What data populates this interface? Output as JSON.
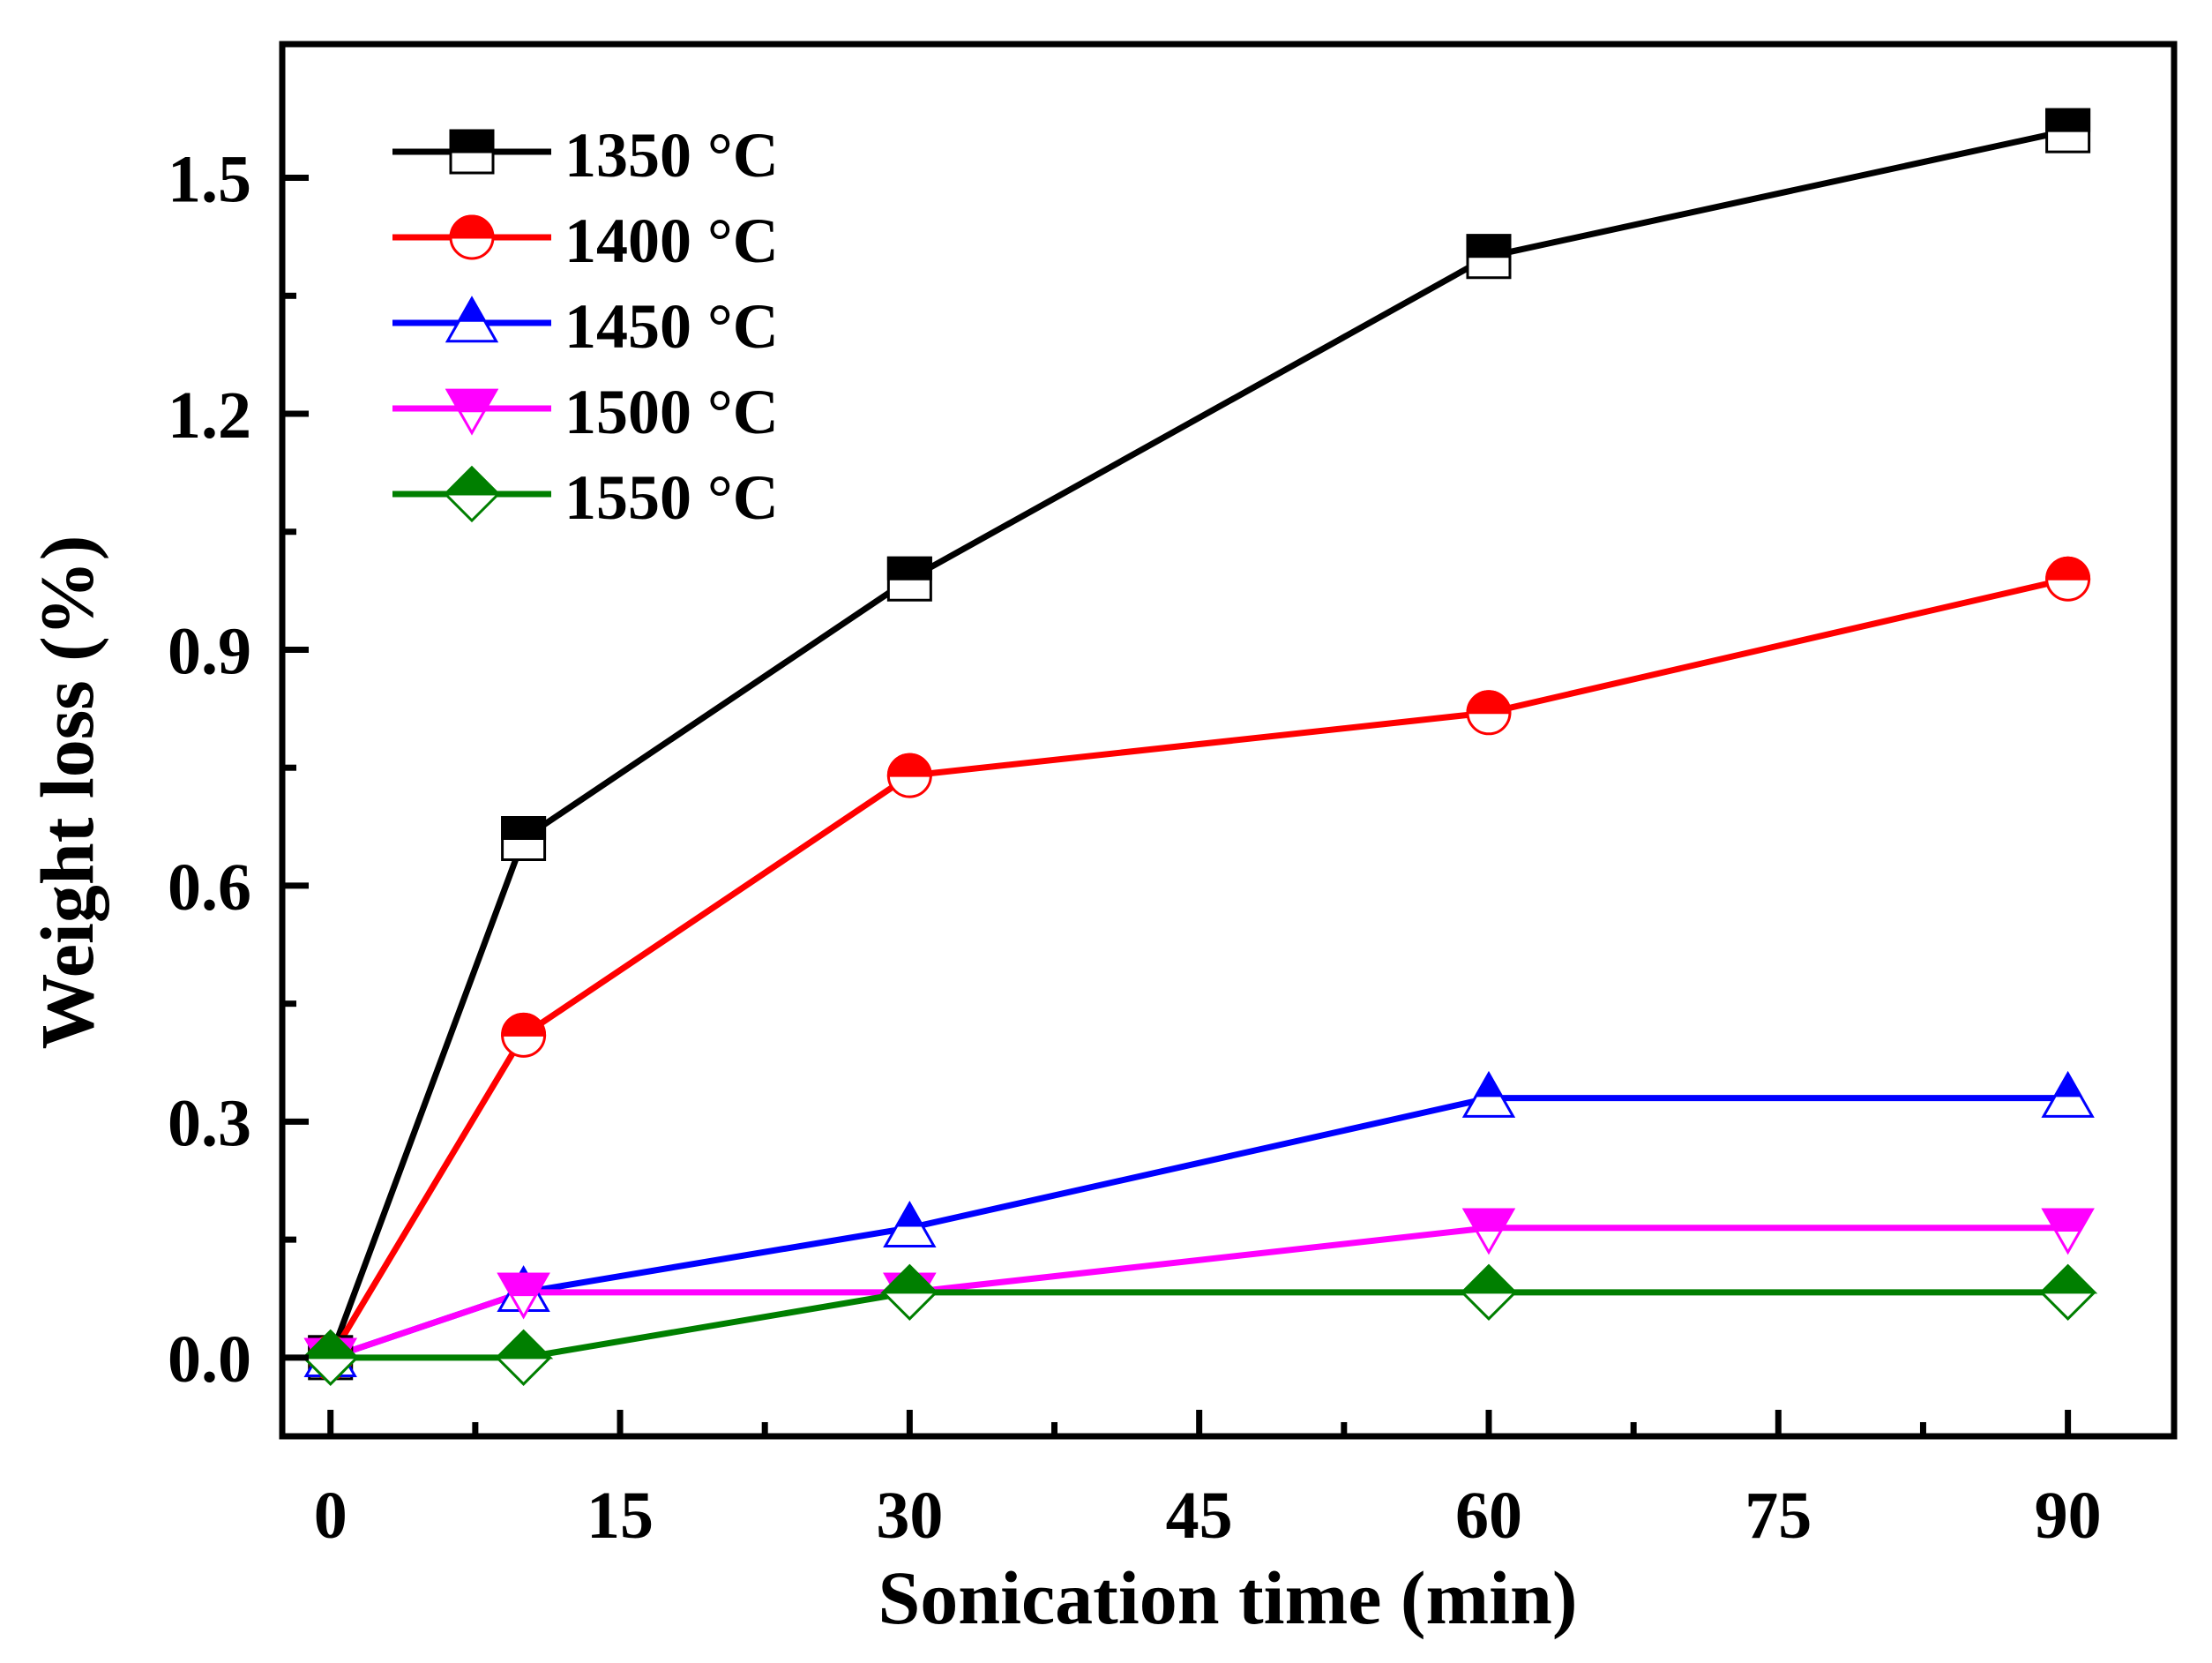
{
  "chart_data": {
    "type": "line",
    "xlabel": "Sonication time (min)",
    "ylabel": "Weight loss (%)",
    "xlim": [
      -2.5,
      95.5
    ],
    "ylim": [
      -0.1,
      1.67
    ],
    "xticks": [
      0,
      15,
      30,
      45,
      60,
      75,
      90
    ],
    "xtick_labels": [
      "0",
      "15",
      "30",
      "45",
      "60",
      "75",
      "90"
    ],
    "yticks": [
      0.0,
      0.3,
      0.6,
      0.9,
      1.2,
      1.5
    ],
    "ytick_labels": [
      "0.0",
      "0.3",
      "0.6",
      "0.9",
      "1.2",
      "1.5"
    ],
    "grid": false,
    "legend_position": "top-left",
    "x": [
      0,
      10,
      30,
      60,
      90
    ],
    "series": [
      {
        "name": "1350 °C",
        "color": "#000000",
        "marker": "square",
        "values": [
          0.0,
          0.66,
          0.99,
          1.4,
          1.56
        ]
      },
      {
        "name": "1400 °C",
        "color": "#ff0000",
        "marker": "circle",
        "values": [
          0.0,
          0.41,
          0.74,
          0.82,
          0.99
        ]
      },
      {
        "name": "1450 °C",
        "color": "#0000ff",
        "marker": "triangle-up",
        "values": [
          0.0,
          0.083,
          0.165,
          0.33,
          0.33
        ]
      },
      {
        "name": "1500 °C",
        "color": "#ff00ff",
        "marker": "triangle-down",
        "values": [
          0.0,
          0.083,
          0.083,
          0.165,
          0.165
        ]
      },
      {
        "name": "1550 °C",
        "color": "#007f00",
        "marker": "diamond",
        "values": [
          0.0,
          0.0,
          0.083,
          0.083,
          0.083
        ]
      }
    ]
  }
}
